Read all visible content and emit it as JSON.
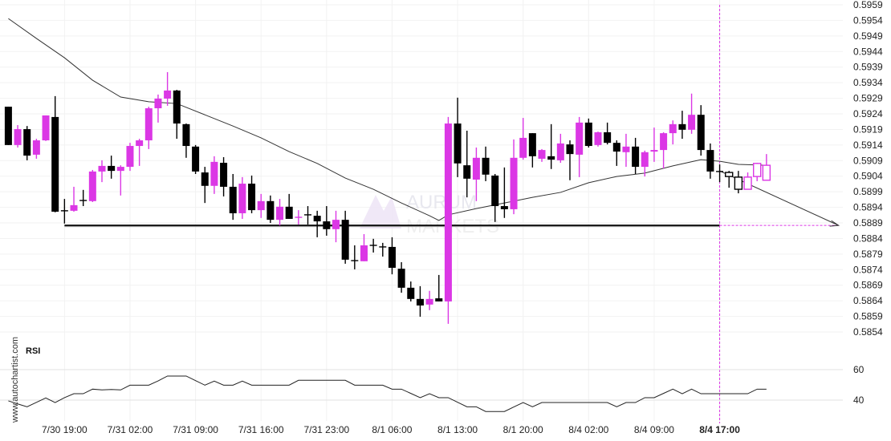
{
  "chart_data": {
    "type": "candlestick",
    "colors": {
      "bullish": "#db37e5",
      "bearish": "#000000",
      "moving_average": "#333333",
      "support_line": "#111111",
      "marker": "#db37e5"
    },
    "y_axis": {
      "range": [
        0.5854,
        0.5959
      ],
      "ticks": [
        "0.5959",
        "0.5954",
        "0.5949",
        "0.5944",
        "0.5939",
        "0.5934",
        "0.5929",
        "0.5924",
        "0.5919",
        "0.5914",
        "0.5909",
        "0.5904",
        "0.5899",
        "0.5894",
        "0.5889",
        "0.5884",
        "0.5879",
        "0.5874",
        "0.5869",
        "0.5864",
        "0.5859",
        "0.5854"
      ]
    },
    "x_ticks": [
      {
        "index": 6,
        "label": "7/30 19:00"
      },
      {
        "index": 13,
        "label": "7/31 02:00"
      },
      {
        "index": 20,
        "label": "7/31 09:00"
      },
      {
        "index": 27,
        "label": "7/31 16:00"
      },
      {
        "index": 34,
        "label": "7/31 23:00"
      },
      {
        "index": 41,
        "label": "8/1 06:00"
      },
      {
        "index": 48,
        "label": "8/1 13:00"
      },
      {
        "index": 55,
        "label": "8/1 20:00"
      },
      {
        "index": 62,
        "label": "8/4 02:00"
      },
      {
        "index": 69,
        "label": "8/4 09:00"
      },
      {
        "index": 76,
        "label": "8/4 17:00",
        "highlight": true
      }
    ],
    "grid": true,
    "candles_ohlc": [
      [
        0.59263,
        0.59263,
        0.5914,
        0.5914
      ],
      [
        0.5914,
        0.59204,
        0.59132,
        0.59191
      ],
      [
        0.59191,
        0.59201,
        0.59091,
        0.59106
      ],
      [
        0.59109,
        0.5916,
        0.59096,
        0.59155
      ],
      [
        0.59155,
        0.59235,
        0.59153,
        0.59235
      ],
      [
        0.5923,
        0.59297,
        0.58924,
        0.58926
      ],
      [
        0.58929,
        0.58967,
        0.58888,
        0.58929
      ],
      [
        0.58929,
        0.59006,
        0.58926,
        0.58947
      ],
      [
        0.58962,
        0.58996,
        0.58944,
        0.5896
      ],
      [
        0.5896,
        0.5906,
        0.58957,
        0.59055
      ],
      [
        0.59055,
        0.59091,
        0.59021,
        0.59073
      ],
      [
        0.59073,
        0.59106,
        0.59032,
        0.59057
      ],
      [
        0.59057,
        0.59075,
        0.58978,
        0.5907
      ],
      [
        0.5907,
        0.59147,
        0.59057,
        0.59137
      ],
      [
        0.59137,
        0.5916,
        0.59073,
        0.59155
      ],
      [
        0.59155,
        0.59263,
        0.59127,
        0.59258
      ],
      [
        0.59258,
        0.59302,
        0.59212,
        0.59289
      ],
      [
        0.59289,
        0.59374,
        0.59266,
        0.59315
      ],
      [
        0.59315,
        0.59317,
        0.5916,
        0.59209
      ],
      [
        0.59207,
        0.59209,
        0.59099,
        0.59137
      ],
      [
        0.59135,
        0.5914,
        0.59047,
        0.59055
      ],
      [
        0.59052,
        0.5907,
        0.58954,
        0.59009
      ],
      [
        0.59009,
        0.59104,
        0.58983,
        0.59086
      ],
      [
        0.59083,
        0.59101,
        0.58975,
        0.59006
      ],
      [
        0.59006,
        0.59047,
        0.589,
        0.58921
      ],
      [
        0.58921,
        0.59037,
        0.58903,
        0.59016
      ],
      [
        0.59016,
        0.59042,
        0.58921,
        0.58931
      ],
      [
        0.58931,
        0.58983,
        0.58906,
        0.5896
      ],
      [
        0.5896,
        0.58978,
        0.5889,
        0.589
      ],
      [
        0.589,
        0.58967,
        0.58882,
        0.58942
      ],
      [
        0.58942,
        0.58983,
        0.58903,
        0.58903
      ],
      [
        0.58906,
        0.58931,
        0.58885,
        0.58908
      ],
      [
        0.58916,
        0.58944,
        0.58885,
        0.58916
      ],
      [
        0.58913,
        0.58929,
        0.58844,
        0.58895
      ],
      [
        0.58895,
        0.58944,
        0.58849,
        0.5887
      ],
      [
        0.5887,
        0.58929,
        0.58828,
        0.589
      ],
      [
        0.589,
        0.58929,
        0.58759,
        0.58772
      ],
      [
        0.58769,
        0.58818,
        0.58741,
        0.58769
      ],
      [
        0.58767,
        0.58854,
        0.58767,
        0.58818
      ],
      [
        0.58818,
        0.58839,
        0.58795,
        0.58818
      ],
      [
        0.58813,
        0.58826,
        0.58782,
        0.58813
      ],
      [
        0.58813,
        0.58844,
        0.58725,
        0.58746
      ],
      [
        0.58743,
        0.58764,
        0.58666,
        0.58682
      ],
      [
        0.58682,
        0.58702,
        0.58638,
        0.58646
      ],
      [
        0.58646,
        0.58687,
        0.58589,
        0.58625
      ],
      [
        0.58628,
        0.58672,
        0.5861,
        0.58646
      ],
      [
        0.58648,
        0.58723,
        0.58638,
        0.58638
      ],
      [
        0.58638,
        0.5923,
        0.58566,
        0.59209
      ],
      [
        0.59209,
        0.59292,
        0.59037,
        0.59081
      ],
      [
        0.59075,
        0.59186,
        0.58972,
        0.59032
      ],
      [
        0.59029,
        0.59132,
        0.5896,
        0.59099
      ],
      [
        0.59099,
        0.59135,
        0.59024,
        0.59045
      ],
      [
        0.59042,
        0.59047,
        0.58893,
        0.58944
      ],
      [
        0.58944,
        0.59068,
        0.58906,
        0.58934
      ],
      [
        0.58934,
        0.59158,
        0.58918,
        0.59099
      ],
      [
        0.59099,
        0.59227,
        0.59093,
        0.59163
      ],
      [
        0.59178,
        0.59178,
        0.59068,
        0.59104
      ],
      [
        0.59096,
        0.59127,
        0.59086,
        0.59124
      ],
      [
        0.59104,
        0.59207,
        0.59063,
        0.59093
      ],
      [
        0.59091,
        0.59176,
        0.59083,
        0.59145
      ],
      [
        0.59142,
        0.59155,
        0.59027,
        0.59111
      ],
      [
        0.59109,
        0.5923,
        0.59037,
        0.59212
      ],
      [
        0.59212,
        0.59225,
        0.59132,
        0.59137
      ],
      [
        0.5914,
        0.59183,
        0.59135,
        0.59181
      ],
      [
        0.59181,
        0.59212,
        0.59142,
        0.59147
      ],
      [
        0.59147,
        0.59155,
        0.59073,
        0.59119
      ],
      [
        0.59117,
        0.59176,
        0.5907,
        0.59135
      ],
      [
        0.59135,
        0.59163,
        0.59047,
        0.5907
      ],
      [
        0.5907,
        0.59122,
        0.59039,
        0.59117
      ],
      [
        0.59119,
        0.59196,
        0.59086,
        0.59124
      ],
      [
        0.59124,
        0.59181,
        0.59065,
        0.59178
      ],
      [
        0.59178,
        0.59219,
        0.59142,
        0.59207
      ],
      [
        0.59207,
        0.5925,
        0.5916,
        0.59189
      ],
      [
        0.59189,
        0.59305,
        0.59176,
        0.59237
      ],
      [
        0.59237,
        0.59268,
        0.59106,
        0.59124
      ],
      [
        0.59124,
        0.59145,
        0.59032,
        0.59055
      ],
      [
        0.59055,
        0.59078,
        0.59021,
        0.59055
      ],
      [
        0.59052,
        0.59057,
        0.59003,
        0.59039
      ],
      [
        0.59037,
        0.59057,
        0.58985,
        0.58998
      ],
      [
        0.58998,
        0.59052,
        0.58998,
        0.59037
      ],
      [
        0.59039,
        0.59083,
        0.59024,
        0.59081
      ],
      [
        0.59027,
        0.59111,
        0.59027,
        0.59075
      ]
    ],
    "hollow_from_index": 77,
    "moving_average": [
      [
        0,
        0.59546
      ],
      [
        3,
        0.59482
      ],
      [
        6,
        0.5942
      ],
      [
        9,
        0.59348
      ],
      [
        12,
        0.59294
      ],
      [
        15,
        0.59279
      ],
      [
        18,
        0.59273
      ],
      [
        21,
        0.59237
      ],
      [
        24,
        0.59201
      ],
      [
        27,
        0.59163
      ],
      [
        30,
        0.59119
      ],
      [
        33,
        0.59081
      ],
      [
        36,
        0.59034
      ],
      [
        39,
        0.58998
      ],
      [
        42,
        0.58954
      ],
      [
        45,
        0.58913
      ],
      [
        46,
        0.58898
      ],
      [
        47,
        0.58916
      ],
      [
        50,
        0.58936
      ],
      [
        53,
        0.58954
      ],
      [
        56,
        0.58972
      ],
      [
        59,
        0.58988
      ],
      [
        62,
        0.59019
      ],
      [
        65,
        0.59039
      ],
      [
        68,
        0.5905
      ],
      [
        71,
        0.59073
      ],
      [
        74,
        0.59093
      ],
      [
        76,
        0.59088
      ],
      [
        78,
        0.59078
      ],
      [
        81,
        0.59075
      ]
    ],
    "support_level": {
      "price": 0.58882,
      "from_index": 6,
      "marker_index": 76
    },
    "forecast_arrow": {
      "from": {
        "index": 76,
        "price": 0.59057
      },
      "to": {
        "index": 88.7,
        "price": 0.58882
      }
    },
    "rsi": {
      "title": "RSI",
      "levels": [
        "60",
        "40"
      ],
      "values": [
        39.5,
        37.5,
        35.6,
        38.5,
        41.4,
        38.4,
        41.6,
        44.2,
        44.2,
        47.2,
        46.7,
        47.0,
        46.7,
        49.8,
        49.8,
        49.8,
        52.6,
        55.8,
        55.8,
        55.8,
        52.8,
        49.8,
        52.5,
        49.8,
        49.8,
        52.5,
        49.8,
        49.8,
        49.8,
        49.8,
        49.8,
        53.0,
        53.0,
        53.0,
        53.0,
        53.0,
        53.0,
        49.8,
        49.8,
        49.8,
        49.8,
        47.2,
        47.2,
        44.4,
        41.6,
        44.2,
        41.6,
        41.6,
        38.6,
        35.6,
        35.6,
        32.5,
        32.5,
        32.5,
        35.5,
        38.4,
        35.6,
        38.4,
        38.4,
        38.4,
        38.4,
        38.4,
        38.4,
        38.4,
        38.4,
        35.6,
        38.4,
        38.4,
        41.6,
        41.6,
        44.4,
        47.2,
        44.2,
        47.2,
        44.2,
        44.2,
        44.2,
        44.2,
        44.2,
        44.2,
        47.2,
        47.2
      ]
    }
  },
  "watermark": {
    "site": "www.autochartist.com",
    "logo_line1": "AURUM",
    "logo_line2": "MARKETS"
  }
}
